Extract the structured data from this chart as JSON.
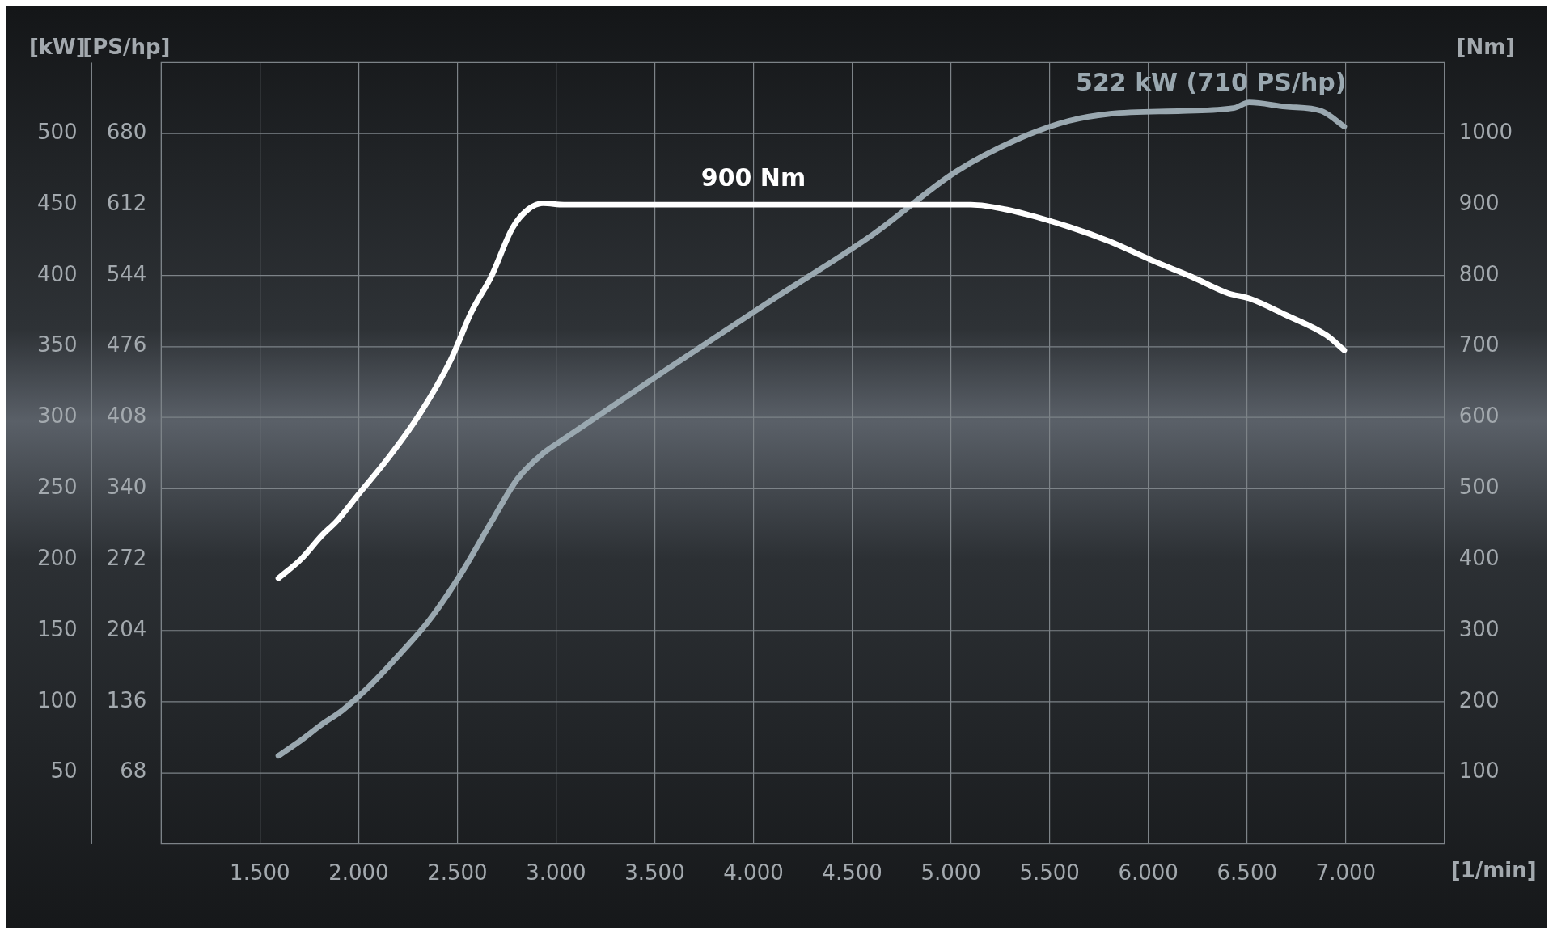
{
  "chart_data": {
    "type": "line",
    "xlabel": "[1/min]",
    "ylabel": "[kW]",
    "y3label": "[PS/hp]",
    "y2label": "[Nm]",
    "xlim": [
      1000,
      7500
    ],
    "xticks": [
      {
        "value": 1500,
        "label": "1.500"
      },
      {
        "value": 2000,
        "label": "2.000"
      },
      {
        "value": 2500,
        "label": "2.500"
      },
      {
        "value": 3000,
        "label": "3.000"
      },
      {
        "value": 3500,
        "label": "3.500"
      },
      {
        "value": 4000,
        "label": "4.000"
      },
      {
        "value": 4500,
        "label": "4.500"
      },
      {
        "value": 5000,
        "label": "5.000"
      },
      {
        "value": 5500,
        "label": "5.500"
      },
      {
        "value": 6000,
        "label": "6.000"
      },
      {
        "value": 6500,
        "label": "6.500"
      },
      {
        "value": 7000,
        "label": "7.000"
      }
    ],
    "ylim": [
      0,
      550
    ],
    "yticks": [
      50,
      100,
      150,
      200,
      250,
      300,
      350,
      400,
      450,
      500
    ],
    "y3lim": [
      0,
      748
    ],
    "y3ticks": [
      68,
      136,
      204,
      272,
      340,
      408,
      476,
      544,
      612,
      680
    ],
    "y2lim": [
      0,
      1100
    ],
    "y2ticks": [
      100,
      200,
      300,
      400,
      500,
      600,
      700,
      800,
      900,
      1000
    ],
    "grid": true,
    "legend": false,
    "annotations": [
      {
        "text": "900 Nm",
        "x": 4000,
        "y": 450
      },
      {
        "text": "522 kW (710 PS/hp)",
        "x": 6511,
        "y": 522
      }
    ],
    "series": [
      {
        "color": "#ffffff",
        "axis": "y2",
        "x": [
          1594,
          1709,
          1813,
          1891,
          1996,
          2152,
          2309,
          2466,
          2570,
          2674,
          2779,
          2857,
          2935,
          3040,
          5101,
          5284,
          5597,
          5806,
          6015,
          6224,
          6407,
          6511,
          6694,
          6903,
          6992
        ],
        "values": [
          374,
          401,
          434,
          455,
          491,
          544,
          605,
          681,
          748,
          800,
          867,
          893,
          902,
          900,
          900,
          893,
          869,
          848,
          822,
          798,
          775,
          768,
          745,
          716,
          695
        ]
      },
      {
        "color": "#9aa8b0",
        "x": [
          1594,
          1709,
          1813,
          1918,
          2048,
          2205,
          2361,
          2518,
          2674,
          2805,
          2935,
          3040,
          3561,
          4083,
          4605,
          5023,
          5336,
          5597,
          5806,
          6171,
          6432,
          6511,
          6694,
          6877,
          6992
        ],
        "values": [
          62,
          73,
          84,
          94,
          110,
          133,
          158,
          190,
          227,
          257,
          275,
          285,
          334,
          382,
          429,
          473,
          496,
          509,
          514,
          516,
          518,
          522,
          519,
          516,
          505
        ]
      }
    ]
  }
}
